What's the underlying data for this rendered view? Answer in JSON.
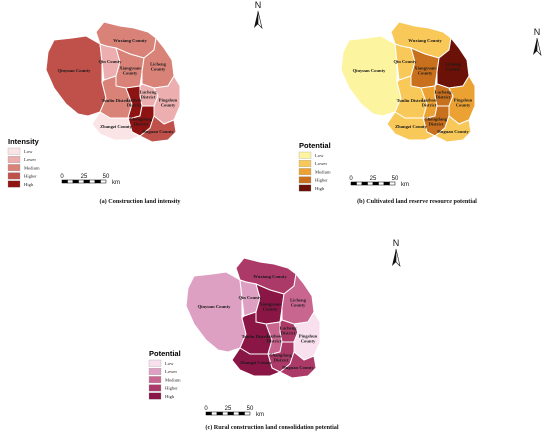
{
  "legend_levels": [
    "Low",
    "Lower",
    "Medium",
    "Higher",
    "High"
  ],
  "scale": {
    "ticks": [
      "0",
      "25",
      "50"
    ],
    "unit": "km"
  },
  "north_label": "N",
  "counties": [
    {
      "id": "qinyuan",
      "name": "Qinyuan County"
    },
    {
      "id": "qin",
      "name": "Qin County"
    },
    {
      "id": "wuxiang",
      "name": "Wuxiang County"
    },
    {
      "id": "xiangyuan",
      "name": "Xiangyuan County"
    },
    {
      "id": "licheng",
      "name": "Licheng County"
    },
    {
      "id": "tunliu",
      "name": "Tunliu District"
    },
    {
      "id": "lucheng",
      "name": "Lucheng District"
    },
    {
      "id": "luzhou",
      "name": "Luzhou District"
    },
    {
      "id": "shangdang",
      "name": "Shangdang District"
    },
    {
      "id": "pingshun",
      "name": "Pingshun County"
    },
    {
      "id": "zhangzi",
      "name": "Zhangzi County"
    },
    {
      "id": "huguan",
      "name": "Huguan County"
    }
  ],
  "maps": [
    {
      "id": "a",
      "legend_title": "Intensity",
      "caption": "(a) Construction land intensity",
      "colors": [
        "#fbe4e6",
        "#edaeb0",
        "#d98278",
        "#c0504a",
        "#8e1414"
      ],
      "levels": {
        "qinyuan": 3,
        "qin": 1,
        "wuxiang": 2,
        "xiangyuan": 2,
        "licheng": 2,
        "tunliu": 2,
        "lucheng": 1,
        "luzhou": 4,
        "shangdang": 4,
        "pingshun": 1,
        "zhangzi": 0,
        "huguan": 3
      }
    },
    {
      "id": "b",
      "legend_title": "Potential",
      "caption": "(b) Cultivated land reserve resource potential",
      "colors": [
        "#fdf4a0",
        "#f8c858",
        "#eba233",
        "#c8701e",
        "#6b1108"
      ],
      "levels": {
        "qinyuan": 0,
        "qin": 1,
        "wuxiang": 1,
        "xiangyuan": 3,
        "licheng": 4,
        "tunliu": 1,
        "lucheng": 3,
        "luzhou": 2,
        "shangdang": 3,
        "pingshun": 2,
        "zhangzi": 1,
        "huguan": 1
      }
    },
    {
      "id": "c",
      "legend_title": "Potential",
      "caption": "(c) Rural construction land consolidation potential",
      "colors": [
        "#f8e0ee",
        "#dea0c2",
        "#c86690",
        "#ac3a68",
        "#8a1646"
      ],
      "levels": {
        "qinyuan": 1,
        "qin": 1,
        "wuxiang": 3,
        "xiangyuan": 4,
        "licheng": 2,
        "tunliu": 4,
        "lucheng": 3,
        "luzhou": 2,
        "shangdang": 3,
        "pingshun": 0,
        "zhangzi": 4,
        "huguan": 3
      }
    }
  ]
}
